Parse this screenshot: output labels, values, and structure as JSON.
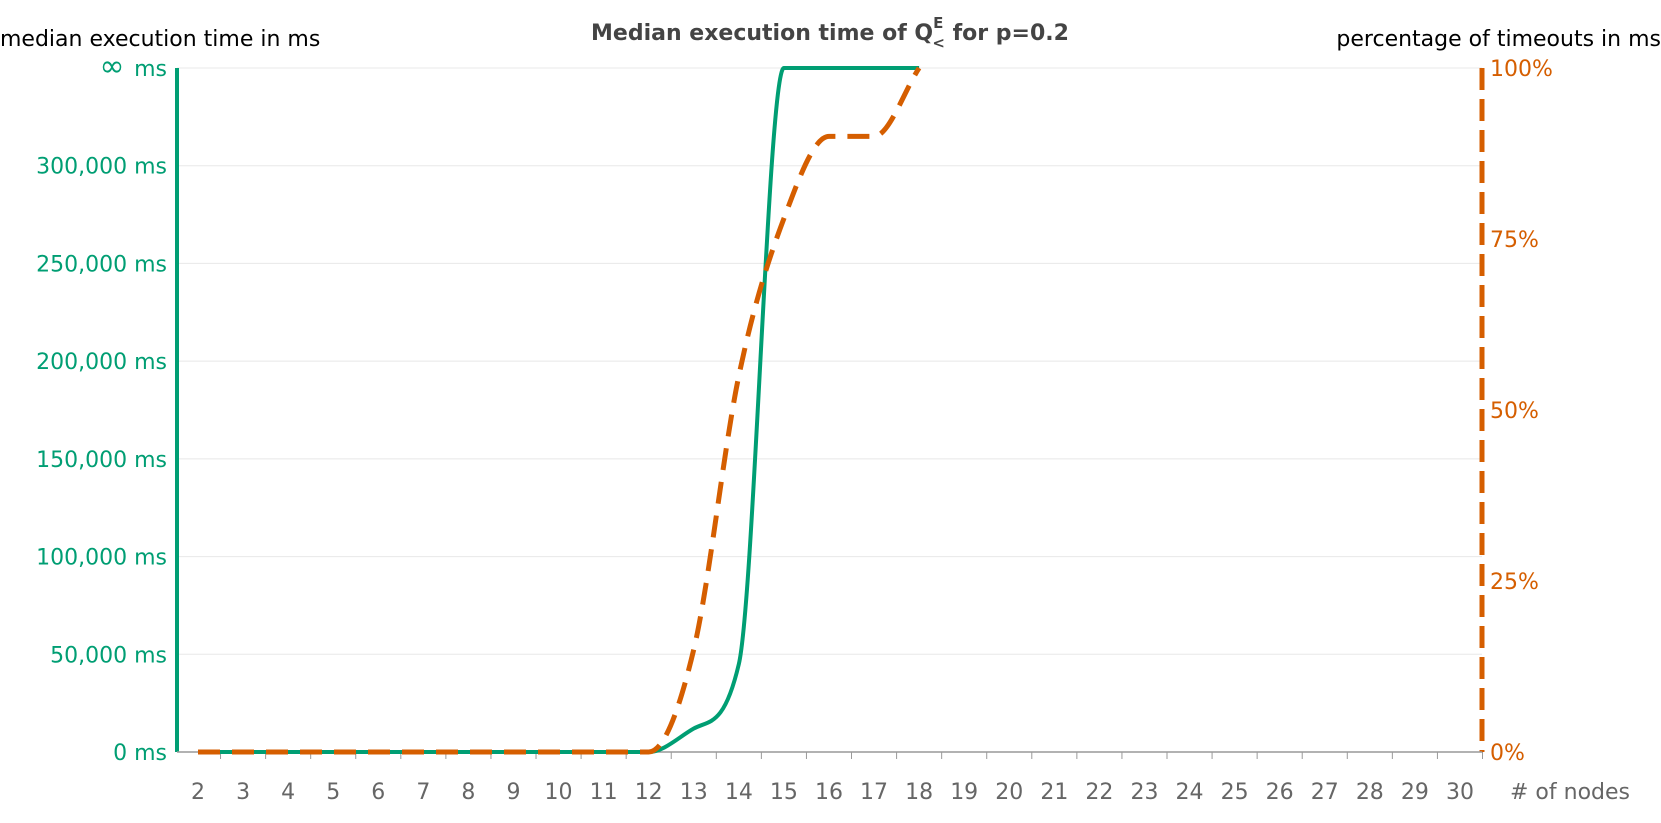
{
  "chart_data": {
    "type": "line",
    "title": {
      "prefix": "Median execution time of Q",
      "sup": "E",
      "sub": "<",
      "suffix": " for p=0.2"
    },
    "ylabel_left": "median execution time in ms",
    "ylabel_right": "percentage of timeouts in ms",
    "xlabel": "# of nodes",
    "x_categories": [
      "2",
      "3",
      "4",
      "5",
      "6",
      "7",
      "8",
      "9",
      "10",
      "11",
      "12",
      "13",
      "14",
      "15",
      "16",
      "17",
      "18",
      "19",
      "20",
      "21",
      "22",
      "23",
      "24",
      "25",
      "26",
      "27",
      "28",
      "29",
      "30"
    ],
    "left_axis": {
      "ticks": [
        0,
        50000,
        100000,
        150000,
        200000,
        250000,
        300000
      ],
      "tick_labels": [
        "0 ms",
        "50,000 ms",
        "100,000 ms",
        "150,000 ms",
        "200,000 ms",
        "250,000 ms",
        "300,000 ms"
      ],
      "infinity_label": "∞ ms",
      "ylim": [
        0,
        350000
      ],
      "color": "#009e73"
    },
    "right_axis": {
      "ticks": [
        0,
        25,
        50,
        75,
        100
      ],
      "tick_labels": [
        "0%",
        "25%",
        "50%",
        "75%",
        "100%"
      ],
      "ylim": [
        0,
        100
      ],
      "color": "#d55e00"
    },
    "series": [
      {
        "axis": "left",
        "color": "#009e73",
        "style": "solid",
        "x": [
          "2",
          "3",
          "4",
          "5",
          "6",
          "7",
          "8",
          "9",
          "10",
          "11",
          "12",
          "13",
          "14",
          "15",
          "16",
          "17",
          "18"
        ],
        "values": [
          0,
          0,
          0,
          0,
          0,
          0,
          0,
          0,
          0,
          0,
          0,
          12000,
          45000,
          350000,
          350000,
          350000,
          350000
        ],
        "note_values_at_top": "value 350000 drawn at the ∞ level"
      },
      {
        "axis": "right",
        "color": "#d55e00",
        "style": "dashed",
        "x": [
          "2",
          "3",
          "4",
          "5",
          "6",
          "7",
          "8",
          "9",
          "10",
          "11",
          "12",
          "13",
          "14",
          "15",
          "16",
          "17",
          "18"
        ],
        "values": [
          0,
          0,
          0,
          0,
          0,
          0,
          0,
          0,
          0,
          0,
          0,
          15,
          55,
          78,
          90,
          90,
          100
        ]
      }
    ],
    "grid": true,
    "legend": "none"
  }
}
